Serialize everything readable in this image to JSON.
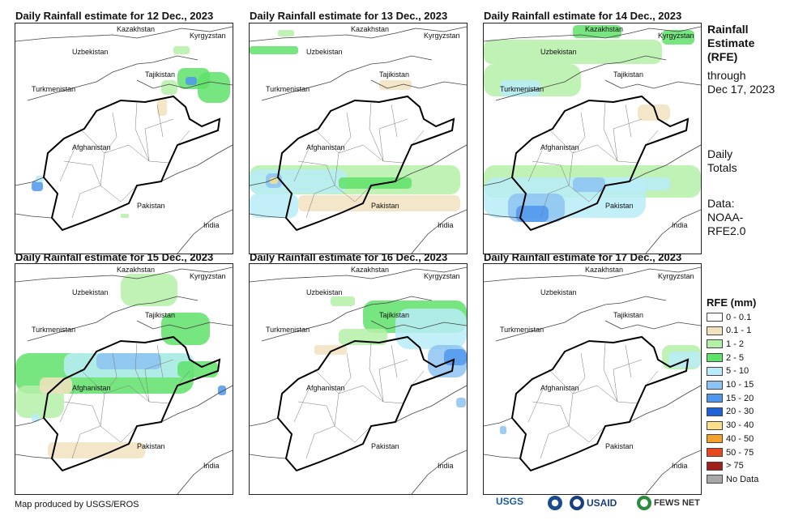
{
  "panels": [
    {
      "title": "Daily Rainfall estimate for 12 Dec., 2023"
    },
    {
      "title": "Daily Rainfall estimate for 13 Dec., 2023"
    },
    {
      "title": "Daily Rainfall estimate for 14 Dec., 2023"
    },
    {
      "title": "Daily Rainfall estimate for 15 Dec., 2023"
    },
    {
      "title": "Daily Rainfall estimate for 16 Dec., 2023"
    },
    {
      "title": "Daily Rainfall estimate for 17 Dec., 2023"
    }
  ],
  "map_labels": {
    "kazakhstan": "Kazakhstan",
    "kyrgyzstan": "Kyrgyzstan",
    "uzbekistan": "Uzbekistan",
    "tajikistan": "Tajikistan",
    "turkmenistan": "Turkmenistan",
    "afghanistan": "Afghanistan",
    "pakistan": "Pakistan",
    "india": "India"
  },
  "sidebar": {
    "title_line1": "Rainfall",
    "title_line2": "Estimate",
    "title_line3": "(RFE)",
    "through": "through",
    "through_date": "Dec 17, 2023",
    "totals_line1": "Daily",
    "totals_line2": "Totals",
    "data_label": "Data:",
    "data_source_line1": "NOAA-",
    "data_source_line2": "RFE2.0"
  },
  "legend": {
    "title": "RFE (mm)",
    "items": [
      {
        "label": "0 - 0.1",
        "color": "#ffffff"
      },
      {
        "label": "0.1 - 1",
        "color": "#f1e2c0"
      },
      {
        "label": "1 - 2",
        "color": "#b5f0a8"
      },
      {
        "label": "2 - 5",
        "color": "#5fe26a"
      },
      {
        "label": "5 - 10",
        "color": "#b9ecf8"
      },
      {
        "label": "10 - 15",
        "color": "#8dc3f2"
      },
      {
        "label": "15 - 20",
        "color": "#4f97ec"
      },
      {
        "label": "20 - 30",
        "color": "#1d62d8"
      },
      {
        "label": "30 - 40",
        "color": "#f8e08a"
      },
      {
        "label": "40 - 50",
        "color": "#f3a12a"
      },
      {
        "label": "50 - 75",
        "color": "#e9471e"
      },
      {
        "label": "> 75",
        "color": "#a2201c"
      },
      {
        "label": "No Data",
        "color": "#a8a8a8"
      }
    ]
  },
  "footer": {
    "credit": "Map produced by USGS/EROS",
    "logos": [
      "USGS",
      "USAID",
      "FEWS NET"
    ]
  }
}
